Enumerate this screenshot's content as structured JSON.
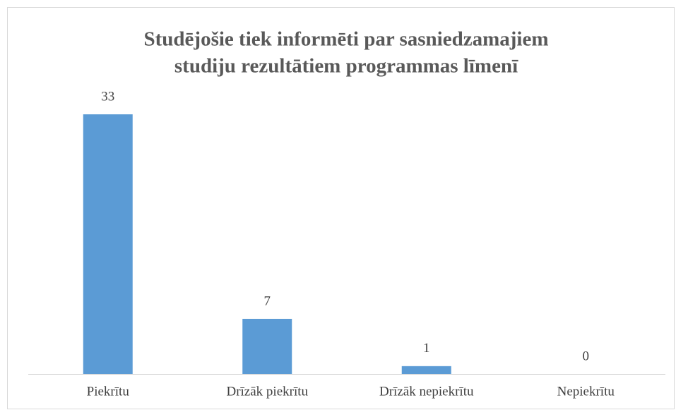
{
  "chart_data": {
    "type": "bar",
    "title": [
      "Studējošie tiek informēti par sasniedzamajiem",
      "studiju rezultātiem programmas līmenī"
    ],
    "categories": [
      "Piekrītu",
      "Drīzāk piekrītu",
      "Drīzāk nepiekrītu",
      "Nepiekrītu"
    ],
    "values": [
      33,
      7,
      1,
      0
    ],
    "color": "#5b9bd5"
  }
}
